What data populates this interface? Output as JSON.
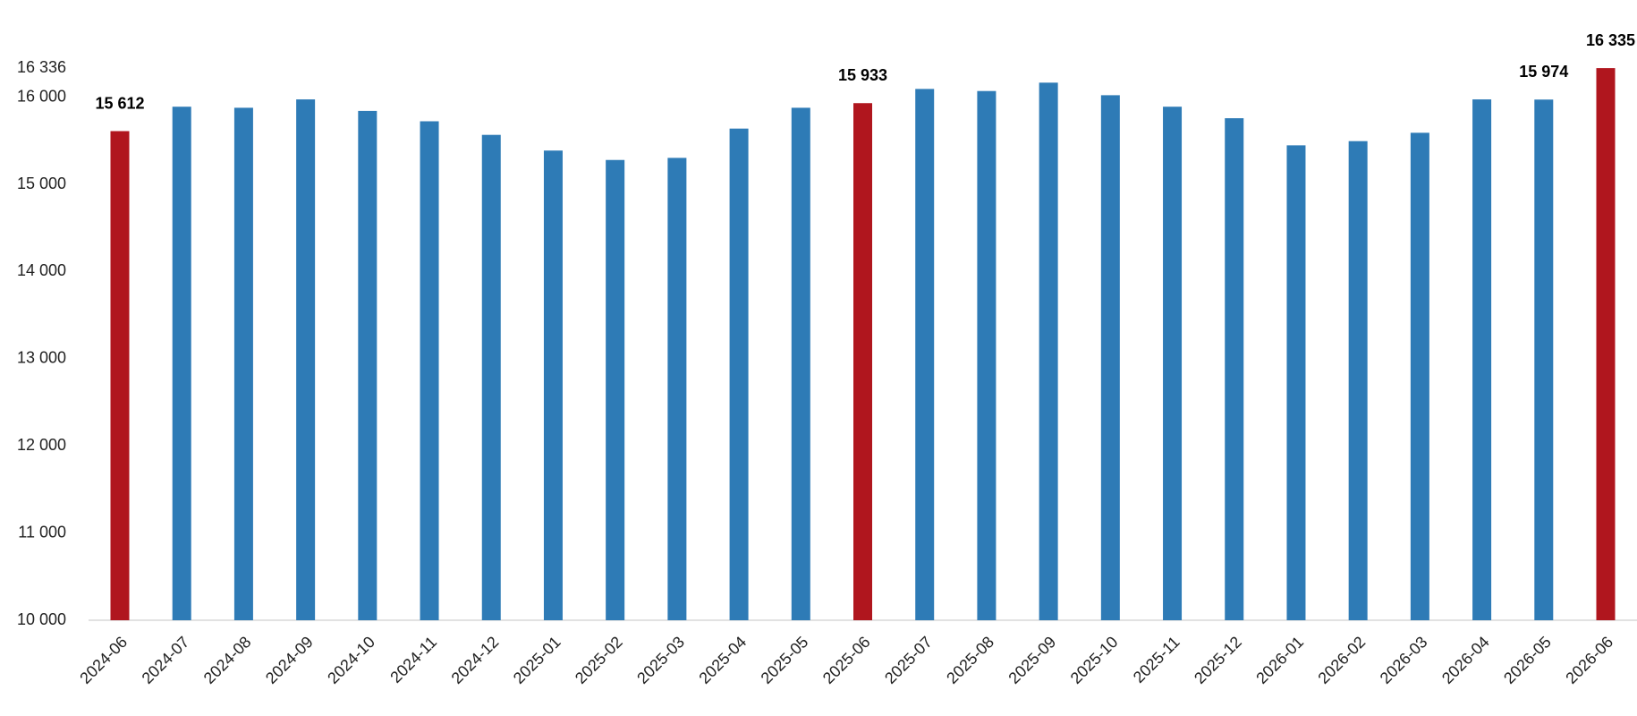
{
  "chart_data": {
    "type": "bar",
    "categories": [
      "2024-06",
      "2024-07",
      "2024-08",
      "2024-09",
      "2024-10",
      "2024-11",
      "2024-12",
      "2025-01",
      "2025-02",
      "2025-03",
      "2025-04",
      "2025-05",
      "2025-06",
      "2025-07",
      "2025-08",
      "2025-09",
      "2025-10",
      "2025-11",
      "2025-12",
      "2026-01",
      "2026-02",
      "2026-03",
      "2026-04",
      "2026-05",
      "2026-06"
    ],
    "values": [
      15612,
      15892,
      15880,
      15976,
      15844,
      15725,
      15569,
      15389,
      15281,
      15305,
      15641,
      15880,
      15933,
      16096,
      16072,
      16168,
      16024,
      15892,
      15760,
      15449,
      15497,
      15593,
      15976,
      15974,
      16335
    ],
    "value_labels": [
      "15 612",
      null,
      null,
      null,
      null,
      null,
      null,
      null,
      null,
      null,
      null,
      null,
      "15 933",
      null,
      null,
      null,
      null,
      null,
      null,
      null,
      null,
      null,
      null,
      "15 974",
      "16 335"
    ],
    "colors": [
      "#b0161e",
      "#2e7bb6",
      "#2e7bb6",
      "#2e7bb6",
      "#2e7bb6",
      "#2e7bb6",
      "#2e7bb6",
      "#2e7bb6",
      "#2e7bb6",
      "#2e7bb6",
      "#2e7bb6",
      "#2e7bb6",
      "#b0161e",
      "#2e7bb6",
      "#2e7bb6",
      "#2e7bb6",
      "#2e7bb6",
      "#2e7bb6",
      "#2e7bb6",
      "#2e7bb6",
      "#2e7bb6",
      "#2e7bb6",
      "#2e7bb6",
      "#2e7bb6",
      "#b0161e"
    ],
    "ylim": [
      10000,
      16336
    ],
    "yticks": [
      {
        "value": 10000,
        "label": "10 000"
      },
      {
        "value": 11000,
        "label": "11 000"
      },
      {
        "value": 12000,
        "label": "12 000"
      },
      {
        "value": 13000,
        "label": "13 000"
      },
      {
        "value": 14000,
        "label": "14 000"
      },
      {
        "value": 15000,
        "label": "15 000"
      },
      {
        "value": 16000,
        "label": "16 000"
      },
      {
        "value": 16336,
        "label": "16 336"
      }
    ],
    "grid": false
  }
}
